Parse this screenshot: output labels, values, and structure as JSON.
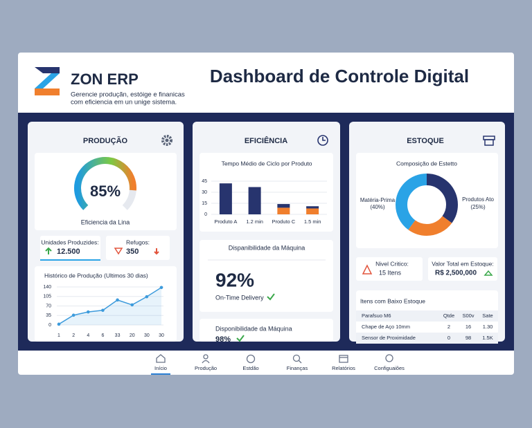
{
  "header": {
    "logo": "ZON ERP",
    "tagline_1": "Gerencie produçãn, estóige e finanicas",
    "tagline_2": "com eficiencia em un unige sistema.",
    "title": "Dashboard de Controle Digital"
  },
  "production": {
    "heading": "PRODUÇÃO",
    "gauge": {
      "type": "gauge",
      "value": 85,
      "value_label": "85%",
      "label": "Eficiencia da Lina"
    },
    "kpis": [
      {
        "label": "Unidades Produzides:",
        "value": "12.500"
      },
      {
        "label": "Refugos:",
        "value": "350"
      }
    ],
    "history": {
      "type": "line",
      "title": "Histórico de Produção (Ultimos 30 dias)",
      "categories": [
        "1",
        "2",
        "4",
        "6",
        "33",
        "20",
        "30",
        "30"
      ],
      "values": [
        3,
        36,
        48,
        54,
        92,
        74,
        104,
        138
      ],
      "color": "#3d9bdc",
      "ylim": [
        0,
        140
      ],
      "yticks": [
        0,
        35,
        70,
        105,
        140
      ],
      "grid": true
    }
  },
  "efficiency": {
    "heading": "EFICIÊNCIA",
    "cycle": {
      "type": "bar",
      "title": "Tempo Médio de Ciclo por Produto",
      "categories": [
        "Produto A",
        "1.2 min",
        "Produto C",
        "1.5 min"
      ],
      "series": [
        {
          "color": "#27346e",
          "values": [
            42,
            37,
            5,
            3
          ]
        },
        {
          "color": "#f07f2d",
          "values": [
            null,
            null,
            9,
            8
          ]
        }
      ],
      "ylim": [
        0,
        45
      ],
      "yticks": [
        0,
        15,
        30,
        45
      ],
      "grid": true
    },
    "availability": {
      "title": "Dispanibilidade da Máquina",
      "value": "92%",
      "note": "On-Time Delivery"
    },
    "availability_2": {
      "title": "Disponibilidade da Máquina",
      "value": "98%"
    }
  },
  "stock": {
    "heading": "ESTOQUE",
    "composition": {
      "type": "pie",
      "title": "Composição de Estetto",
      "categories": [
        null,
        "Produtos Ato",
        "Matéria-Prima"
      ],
      "values": [
        35,
        25,
        40
      ],
      "value_labels": [
        null,
        "(25%)",
        "(40%)"
      ],
      "colors": [
        "#27346e",
        "#f07f2d",
        "#2aa3e6"
      ]
    },
    "critical": {
      "label": "Nivel Critico:",
      "value": "15 Itens"
    },
    "total": {
      "label": "Valor Total em Estoque:",
      "value": "R$ 2,500,000"
    },
    "table": {
      "title": "Itens com Baixo Estoque",
      "header": [
        "Parafsuo M6",
        "Qtde",
        "S00v",
        "Sate"
      ],
      "rows": [
        [
          "Chape de Aço 10mm",
          "2",
          "16",
          "1.30"
        ],
        [
          "Sensor de Proximidade",
          "0",
          "98",
          "1.5K"
        ]
      ]
    }
  },
  "nav": [
    "Início",
    "Produção",
    "Estdão",
    "Finanças",
    "Relatórios",
    "Configuaiões"
  ]
}
